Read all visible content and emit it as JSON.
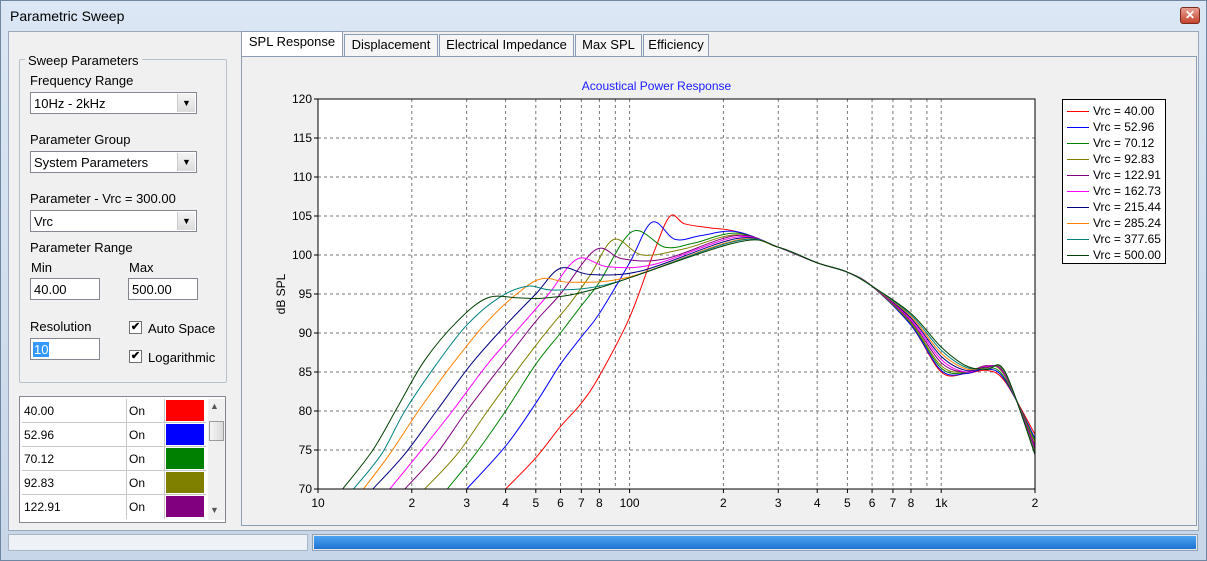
{
  "window": {
    "title": "Parametric Sweep"
  },
  "sweep": {
    "group_title": "Sweep Parameters",
    "freq_label": "Frequency Range",
    "freq_value": "10Hz - 2kHz",
    "pgroup_label": "Parameter Group",
    "pgroup_value": "System Parameters",
    "param_label": "Parameter - Vrc = 300.00",
    "param_value": "Vrc",
    "range_label": "Parameter Range",
    "min_label": "Min",
    "min_value": "40.00",
    "max_label": "Max",
    "max_value": "500.00",
    "resolution_label": "Resolution",
    "resolution_value": "10",
    "auto_space_label": "Auto Space",
    "auto_space_checked": true,
    "logarithmic_label": "Logarithmic",
    "logarithmic_checked": true
  },
  "list": [
    {
      "value": "40.00",
      "state": "On",
      "color": "#ff0000"
    },
    {
      "value": "52.96",
      "state": "On",
      "color": "#0000ff"
    },
    {
      "value": "70.12",
      "state": "On",
      "color": "#008000"
    },
    {
      "value": "92.83",
      "state": "On",
      "color": "#808000"
    },
    {
      "value": "122.91",
      "state": "On",
      "color": "#800080"
    }
  ],
  "tabs": [
    "SPL Response",
    "Displacement",
    "Electrical Impedance",
    "Max SPL",
    "Efficiency"
  ],
  "active_tab": 0,
  "progress": {
    "fraction": 1.0
  },
  "chart_data": {
    "type": "line",
    "title": "Acoustical Power Response",
    "xlabel": "",
    "ylabel": "dB SPL",
    "x_scale": "log",
    "xlim": [
      10,
      2000
    ],
    "ylim": [
      70,
      120
    ],
    "grid": true,
    "legend_placement": "right",
    "x_tick_labels": [
      {
        "value": 10,
        "label": "10"
      },
      {
        "value": 20,
        "label": "2"
      },
      {
        "value": 30,
        "label": "3"
      },
      {
        "value": 40,
        "label": "4"
      },
      {
        "value": 50,
        "label": "5"
      },
      {
        "value": 60,
        "label": "6"
      },
      {
        "value": 70,
        "label": "7"
      },
      {
        "value": 80,
        "label": "8"
      },
      {
        "value": 100,
        "label": "100"
      },
      {
        "value": 200,
        "label": "2"
      },
      {
        "value": 300,
        "label": "3"
      },
      {
        "value": 400,
        "label": "4"
      },
      {
        "value": 500,
        "label": "5"
      },
      {
        "value": 600,
        "label": "6"
      },
      {
        "value": 700,
        "label": "7"
      },
      {
        "value": 800,
        "label": "8"
      },
      {
        "value": 1000,
        "label": "1k"
      },
      {
        "value": 2000,
        "label": "2"
      }
    ],
    "y_ticks": [
      70,
      75,
      80,
      85,
      90,
      95,
      100,
      105,
      110,
      115,
      120
    ],
    "series": [
      {
        "name": "Vrc = 40.00",
        "color": "#ff0000",
        "x": [
          40,
          50,
          60,
          70,
          80,
          100,
          120,
          135,
          150,
          180,
          220,
          300,
          400,
          500,
          600,
          800,
          1000,
          1200,
          1400,
          1600,
          2000
        ],
        "y": [
          70.0,
          74.0,
          78.0,
          81.0,
          84.5,
          92.0,
          100.5,
          105.0,
          104.0,
          103.5,
          103.0,
          101.0,
          99.0,
          97.8,
          96.0,
          91.0,
          85.0,
          84.8,
          85.2,
          83.8,
          77.0
        ]
      },
      {
        "name": "Vrc = 52.96",
        "color": "#0000ff",
        "x": [
          30,
          40,
          50,
          60,
          70,
          80,
          100,
          118,
          140,
          170,
          220,
          300,
          400,
          500,
          600,
          800,
          1000,
          1200,
          1400,
          1600,
          2000
        ],
        "y": [
          70.0,
          75.5,
          81.0,
          86.0,
          89.5,
          92.5,
          99.0,
          104.2,
          102.0,
          102.5,
          103.0,
          101.0,
          99.0,
          97.8,
          96.0,
          91.0,
          85.2,
          84.8,
          85.4,
          84.0,
          76.5
        ]
      },
      {
        "name": "Vrc = 70.12",
        "color": "#008000",
        "x": [
          26,
          32,
          40,
          50,
          60,
          70,
          80,
          102,
          130,
          160,
          220,
          300,
          400,
          500,
          600,
          800,
          1000,
          1200,
          1400,
          1600,
          2000
        ],
        "y": [
          70.0,
          74.5,
          80.0,
          86.0,
          90.0,
          93.5,
          96.5,
          103.0,
          101.0,
          101.5,
          102.8,
          101.0,
          99.0,
          97.8,
          96.0,
          91.2,
          85.5,
          84.9,
          85.6,
          84.2,
          76.2
        ]
      },
      {
        "name": "Vrc = 92.83",
        "color": "#808000",
        "x": [
          22,
          28,
          35,
          45,
          55,
          65,
          75,
          89,
          110,
          150,
          220,
          300,
          400,
          500,
          600,
          800,
          1000,
          1200,
          1400,
          1600,
          2000
        ],
        "y": [
          70.0,
          74.5,
          80.0,
          86.0,
          90.5,
          94.0,
          97.5,
          102.0,
          100.0,
          100.8,
          102.6,
          101.0,
          99.0,
          97.8,
          96.0,
          91.3,
          85.8,
          85.0,
          85.8,
          84.5,
          75.8
        ]
      },
      {
        "name": "Vrc = 122.91",
        "color": "#800080",
        "x": [
          19,
          24,
          30,
          40,
          50,
          60,
          78,
          95,
          130,
          220,
          300,
          400,
          500,
          600,
          800,
          1000,
          1200,
          1400,
          1600,
          2000
        ],
        "y": [
          70.0,
          74.5,
          80.0,
          86.5,
          91.5,
          95.0,
          100.7,
          99.5,
          99.5,
          102.5,
          101.0,
          99.0,
          97.8,
          96.0,
          91.5,
          86.2,
          85.0,
          85.8,
          84.6,
          75.5
        ]
      },
      {
        "name": "Vrc = 162.73",
        "color": "#ff00ff",
        "x": [
          17,
          21,
          27,
          35,
          45,
          55,
          68,
          85,
          120,
          220,
          300,
          400,
          500,
          600,
          800,
          1000,
          1200,
          1400,
          1600,
          2000
        ],
        "y": [
          70.0,
          74.5,
          80.0,
          86.0,
          91.0,
          95.0,
          99.5,
          98.5,
          98.8,
          102.3,
          101.0,
          99.0,
          97.8,
          96.0,
          91.7,
          86.6,
          85.0,
          85.7,
          84.7,
          75.2
        ]
      },
      {
        "name": "Vrc = 215.44",
        "color": "#000080",
        "x": [
          15,
          19,
          24,
          31,
          40,
          50,
          60,
          75,
          110,
          220,
          300,
          400,
          500,
          600,
          800,
          1000,
          1200,
          1400,
          1600,
          2000
        ],
        "y": [
          70.0,
          74.5,
          80.0,
          86.0,
          91.0,
          95.0,
          98.3,
          97.5,
          98.0,
          102.1,
          101.0,
          99.0,
          97.8,
          96.0,
          91.9,
          87.0,
          85.2,
          85.6,
          84.8,
          75.0
        ]
      },
      {
        "name": "Vrc = 285.24",
        "color": "#ff8000",
        "x": [
          14,
          17,
          21,
          27,
          35,
          45,
          53,
          65,
          100,
          220,
          300,
          400,
          500,
          600,
          800,
          1000,
          1200,
          1400,
          1600,
          2000
        ],
        "y": [
          70.0,
          74.5,
          80.0,
          86.0,
          91.5,
          95.5,
          97.0,
          96.5,
          97.2,
          101.9,
          101.0,
          99.0,
          97.8,
          96.0,
          92.1,
          87.4,
          85.4,
          85.5,
          84.9,
          74.8
        ]
      },
      {
        "name": "Vrc = 377.65",
        "color": "#008080",
        "x": [
          13,
          16,
          19,
          24,
          30,
          38,
          47,
          58,
          90,
          220,
          300,
          400,
          500,
          600,
          800,
          1000,
          1200,
          1400,
          1600,
          2000
        ],
        "y": [
          70.0,
          74.5,
          80.0,
          86.0,
          91.0,
          94.5,
          96.0,
          95.5,
          96.5,
          101.8,
          101.0,
          99.0,
          97.8,
          96.0,
          92.3,
          87.8,
          85.6,
          85.4,
          85.0,
          74.6
        ]
      },
      {
        "name": "Vrc = 500.00",
        "color": "#004000",
        "x": [
          12,
          15,
          18,
          22,
          28,
          35,
          44,
          54,
          80,
          220,
          300,
          400,
          500,
          600,
          800,
          1000,
          1200,
          1400,
          1600,
          2000
        ],
        "y": [
          70.0,
          75.0,
          80.5,
          86.5,
          91.5,
          94.5,
          94.5,
          94.5,
          95.8,
          101.6,
          101.0,
          99.0,
          97.8,
          96.0,
          92.5,
          88.2,
          85.8,
          85.3,
          85.1,
          74.4
        ]
      }
    ]
  }
}
